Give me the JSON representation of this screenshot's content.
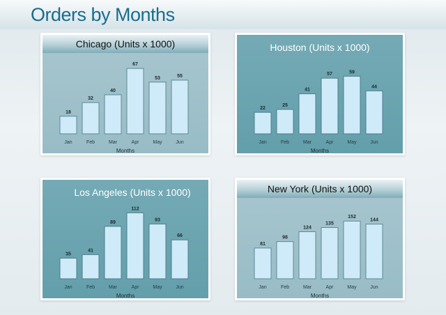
{
  "page": {
    "title": "Orders by Months"
  },
  "chart_data": [
    {
      "type": "bar",
      "title": "Chicago (Units x 1000)",
      "xlabel": "Months",
      "ylabel": "",
      "categories": [
        "Jan",
        "Feb",
        "Mar",
        "Apr",
        "May",
        "Jun"
      ],
      "values": [
        18,
        32,
        40,
        67,
        53,
        55
      ],
      "ylim": [
        0,
        70
      ],
      "grid": false,
      "colors": {
        "bar": "#cfeaf8",
        "bar_border": "#5d8a97"
      }
    },
    {
      "type": "bar",
      "title": "Houston (Units x 1000)",
      "xlabel": "Months",
      "ylabel": "",
      "categories": [
        "Jan",
        "Feb",
        "Mar",
        "Apr",
        "May",
        "Jun"
      ],
      "values": [
        22,
        25,
        41,
        57,
        59,
        44
      ],
      "ylim": [
        0,
        70
      ],
      "grid": false,
      "colors": {
        "bar": "#cfeaf8",
        "bar_border": "#4d7f8c"
      }
    },
    {
      "type": "bar",
      "title": "Los Angeles (Units x 1000)",
      "xlabel": "Months",
      "ylabel": "",
      "categories": [
        "Jan",
        "Feb",
        "Mar",
        "Apr",
        "May",
        "Jun"
      ],
      "values": [
        35,
        41,
        89,
        112,
        93,
        66
      ],
      "ylim": [
        0,
        116
      ],
      "grid": false,
      "colors": {
        "bar": "#cfeaf8",
        "bar_border": "#4d7f8c"
      }
    },
    {
      "type": "bar",
      "title": "New York (Units x 1000)",
      "xlabel": "Months",
      "ylabel": "",
      "categories": [
        "Jan",
        "Feb",
        "Mar",
        "Apr",
        "May",
        "Jun"
      ],
      "values": [
        81,
        98,
        124,
        135,
        152,
        144
      ],
      "ylim": [
        0,
        180
      ],
      "grid": false,
      "colors": {
        "bar": "#cfeaf8",
        "bar_border": "#5d8a97"
      }
    }
  ]
}
